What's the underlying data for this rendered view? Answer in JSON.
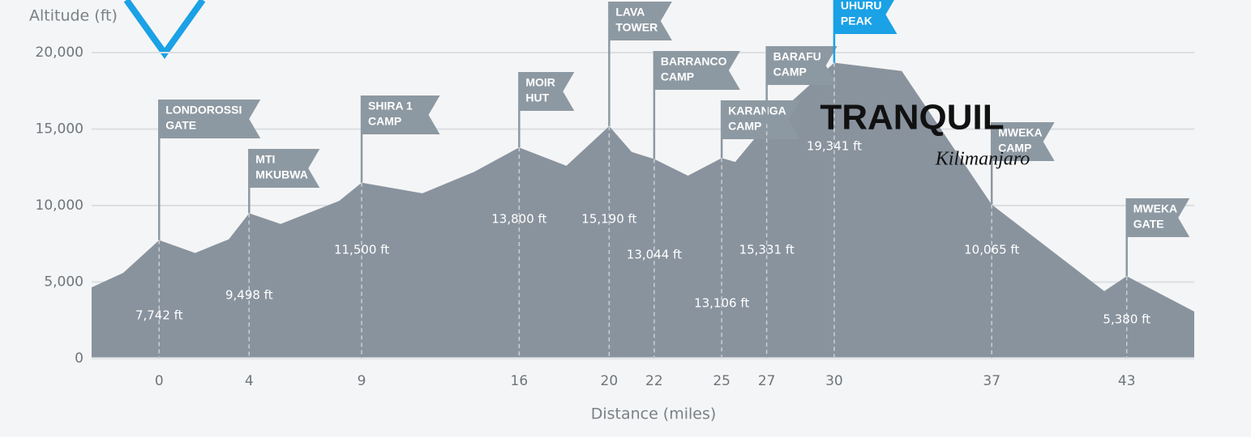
{
  "chart_data": {
    "type": "area",
    "y_label": "Altitude (ft)",
    "x_label": "Distance (miles)",
    "color": "#89939e",
    "x": [
      -3,
      -1.6,
      0,
      1.6,
      3.1,
      4,
      5.4,
      8,
      9,
      11.7,
      14,
      16,
      18.1,
      20,
      21,
      22,
      23.5,
      25,
      25.6,
      27,
      30,
      33,
      37,
      42,
      43,
      46
    ],
    "values": [
      4650,
      5600,
      7742,
      6900,
      7800,
      9498,
      8800,
      10300,
      11500,
      10800,
      12200,
      13800,
      12600,
      15190,
      13500,
      13044,
      11950,
      13106,
      12850,
      15331,
      19341,
      18800,
      10065,
      4400,
      5380,
      3070
    ],
    "xlim": [
      -3,
      46
    ],
    "ylim": [
      0,
      20000
    ],
    "xticks": [
      0,
      4,
      9,
      16,
      20,
      22,
      25,
      27,
      30,
      37,
      43
    ],
    "yticks": [
      0,
      {
        "value": 5000,
        "label": "5,000"
      },
      {
        "value": 10000,
        "label": "10,000"
      },
      {
        "value": 15000,
        "label": "15,000"
      },
      {
        "value": 20000,
        "label": "20,000"
      }
    ],
    "grid": true,
    "camps": {
      "names": [
        [
          "LONDOROSSI",
          "GATE"
        ],
        [
          "MTI",
          "MKUBWA"
        ],
        [
          "SHIRA 1",
          "CAMP"
        ],
        [
          "MOIR",
          "HUT"
        ],
        [
          "LAVA",
          "TOWER"
        ],
        [
          "BARRANCO",
          "CAMP"
        ],
        [
          "KARANGA",
          "CAMP"
        ],
        [
          "BARAFU",
          "CAMP"
        ],
        [
          "UHURU",
          "PEAK"
        ],
        [
          "MWEKA",
          "CAMP"
        ],
        [
          "MWEKA",
          "GATE"
        ]
      ],
      "x": [
        0,
        4,
        9,
        16,
        20,
        22,
        25,
        27,
        30,
        37,
        43
      ],
      "values": [
        7742,
        9498,
        11500,
        13800,
        15190,
        13044,
        13106,
        15331,
        19341,
        10065,
        5380
      ],
      "value_labels": [
        "7,742 ft",
        "9,498 ft",
        "11,500 ft",
        "13,800 ft",
        "15,190 ft",
        "13,044 ft",
        "13,106 ft",
        "15,331 ft",
        "19,341 ft",
        "10,065 ft",
        "5,380 ft"
      ],
      "colors": [
        "#8d99a2",
        "#8d99a2",
        "#8d99a2",
        "#8d99a2",
        "#8d99a2",
        "#8d99a2",
        "#8d99a2",
        "#8d99a2",
        "#1aa1e6",
        "#8d99a2",
        "#8d99a2"
      ]
    },
    "logo": {
      "text": "TRANQUIL",
      "script": "Kilimanjaro"
    }
  }
}
